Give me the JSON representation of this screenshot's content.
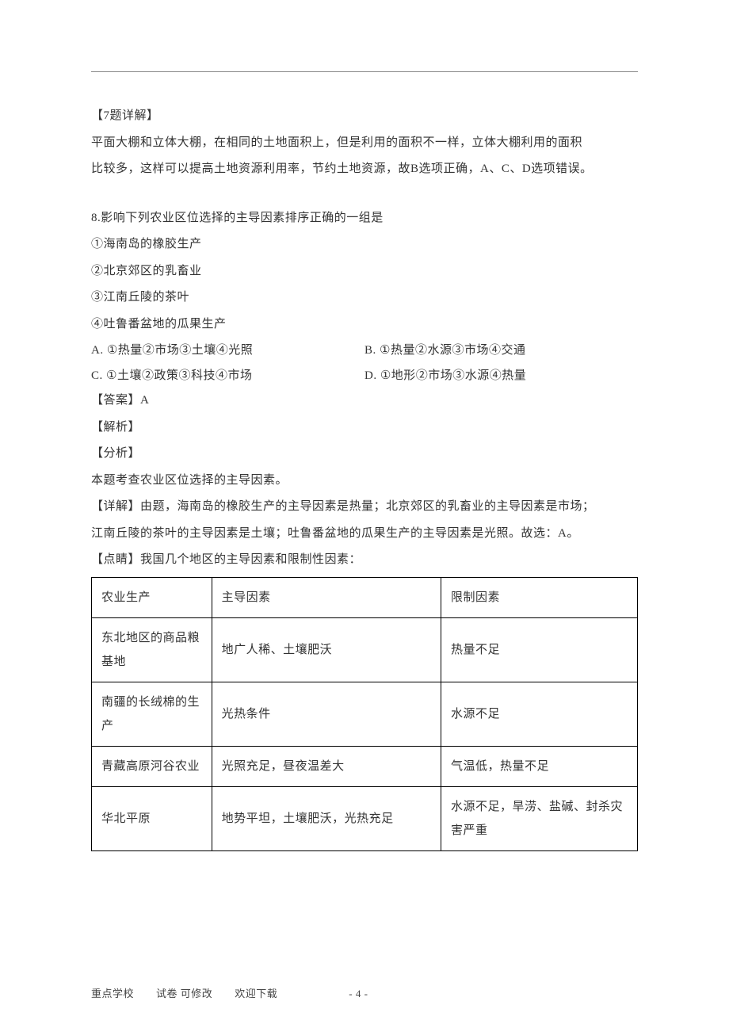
{
  "section7": {
    "title": "【7题详解】",
    "line1": "平面大棚和立体大棚，在相同的土地面积上，但是利用的面积不一样，立体大棚利用的面积",
    "line2": "比较多，这样可以提高土地资源利用率，节约土地资源，故B选项正确，A、C、D选项错误。"
  },
  "question8": {
    "stem": "8.影响下列农业区位选择的主导因素排序正确的一组是",
    "items": {
      "i1": "①海南岛的橡胶生产",
      "i2": "②北京郊区的乳畜业",
      "i3": "③江南丘陵的茶叶",
      "i4": "④吐鲁番盆地的瓜果生产"
    },
    "options": {
      "A": "A. ①热量②市场③土壤④光照",
      "B": "B. ①热量②水源③市场④交通",
      "C": "C. ①土壤②政策③科技④市场",
      "D": "D. ①地形②市场③水源④热量"
    },
    "answer": "【答案】A",
    "jiexi": "【解析】",
    "fenxi": "【分析】",
    "fenxi_body": "本题考查农业区位选择的主导因素。",
    "xiangjie_l1": "【详解】由题，海南岛的橡胶生产的主导因素是热量；北京郊区的乳畜业的主导因素是市场；",
    "xiangjie_l2": "江南丘陵的茶叶的主导因素是土壤；吐鲁番盆地的瓜果生产的主导因素是光照。故选：A。",
    "dianjing": "【点睛】我国几个地区的主导因素和限制性因素："
  },
  "table": {
    "headers": {
      "c1": "农业生产",
      "c2": "主导因素",
      "c3": "限制因素"
    },
    "rows": [
      {
        "c1": "东北地区的商品粮基地",
        "c2": "地广人稀、土壤肥沃",
        "c3": "热量不足"
      },
      {
        "c1": "南疆的长绒棉的生产",
        "c2": "光热条件",
        "c3": "水源不足"
      },
      {
        "c1": "青藏高原河谷农业",
        "c2": "光照充足，昼夜温差大",
        "c3": "气温低，热量不足"
      },
      {
        "c1": "华北平原",
        "c2": "地势平坦，土壤肥沃，光热充足",
        "c3": "水源不足，旱涝、盐碱、封杀灾害严重"
      }
    ]
  },
  "footer": {
    "text1": "重点学校",
    "text2": "试卷 可修改",
    "text3": "欢迎下载",
    "page": "- 4 -"
  }
}
